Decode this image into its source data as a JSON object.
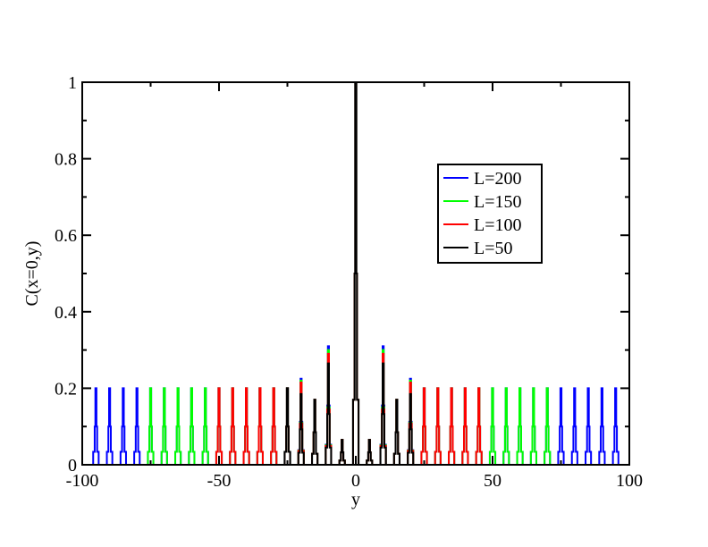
{
  "chart_data": {
    "type": "line",
    "title": "",
    "xlabel": "y",
    "ylabel": "C(x=0,y)",
    "xlim": [
      -100,
      100
    ],
    "ylim": [
      0,
      1
    ],
    "grid": false,
    "legend_position": "upper-right",
    "x_ticks": [
      -100,
      -50,
      0,
      50,
      100
    ],
    "x_tick_labels": [
      "-100",
      "-50",
      "0",
      "50",
      "100"
    ],
    "y_ticks": [
      0,
      0.2,
      0.4,
      0.6,
      0.8,
      1
    ],
    "y_tick_labels": [
      "0",
      "0.2",
      "0.4",
      "0.6",
      "0.8",
      "1"
    ],
    "series": [
      {
        "name": "L=200",
        "color": "#0000ff",
        "peaks": [
          {
            "x": -95,
            "y": 0.2
          },
          {
            "x": -90,
            "y": 0.2
          },
          {
            "x": -85,
            "y": 0.2
          },
          {
            "x": -80,
            "y": 0.2
          },
          {
            "x": -75,
            "y": 0.2
          },
          {
            "x": -70,
            "y": 0.2
          },
          {
            "x": -65,
            "y": 0.2
          },
          {
            "x": -60,
            "y": 0.2
          },
          {
            "x": -55,
            "y": 0.2
          },
          {
            "x": -50,
            "y": 0.2
          },
          {
            "x": -45,
            "y": 0.2
          },
          {
            "x": -40,
            "y": 0.2
          },
          {
            "x": -35,
            "y": 0.2
          },
          {
            "x": -30,
            "y": 0.2
          },
          {
            "x": -25,
            "y": 0.2
          },
          {
            "x": -20,
            "y": 0.225
          },
          {
            "x": -15,
            "y": 0.17
          },
          {
            "x": -10,
            "y": 0.31
          },
          {
            "x": -5,
            "y": 0.065
          },
          {
            "x": 0,
            "y": 1.0
          },
          {
            "x": 5,
            "y": 0.065
          },
          {
            "x": 10,
            "y": 0.31
          },
          {
            "x": 15,
            "y": 0.17
          },
          {
            "x": 20,
            "y": 0.225
          },
          {
            "x": 25,
            "y": 0.2
          },
          {
            "x": 30,
            "y": 0.2
          },
          {
            "x": 35,
            "y": 0.2
          },
          {
            "x": 40,
            "y": 0.2
          },
          {
            "x": 45,
            "y": 0.2
          },
          {
            "x": 50,
            "y": 0.2
          },
          {
            "x": 55,
            "y": 0.2
          },
          {
            "x": 60,
            "y": 0.2
          },
          {
            "x": 65,
            "y": 0.2
          },
          {
            "x": 70,
            "y": 0.2
          },
          {
            "x": 75,
            "y": 0.2
          },
          {
            "x": 80,
            "y": 0.2
          },
          {
            "x": 85,
            "y": 0.2
          },
          {
            "x": 90,
            "y": 0.2
          },
          {
            "x": 95,
            "y": 0.2
          }
        ]
      },
      {
        "name": "L=150",
        "color": "#00ff00",
        "peaks": [
          {
            "x": -75,
            "y": 0.2
          },
          {
            "x": -70,
            "y": 0.2
          },
          {
            "x": -65,
            "y": 0.2
          },
          {
            "x": -60,
            "y": 0.2
          },
          {
            "x": -55,
            "y": 0.2
          },
          {
            "x": -50,
            "y": 0.2
          },
          {
            "x": -45,
            "y": 0.2
          },
          {
            "x": -40,
            "y": 0.2
          },
          {
            "x": -35,
            "y": 0.2
          },
          {
            "x": -30,
            "y": 0.2
          },
          {
            "x": -25,
            "y": 0.2
          },
          {
            "x": -20,
            "y": 0.22
          },
          {
            "x": -15,
            "y": 0.17
          },
          {
            "x": -10,
            "y": 0.3
          },
          {
            "x": -5,
            "y": 0.065
          },
          {
            "x": 0,
            "y": 1.0
          },
          {
            "x": 5,
            "y": 0.065
          },
          {
            "x": 10,
            "y": 0.3
          },
          {
            "x": 15,
            "y": 0.17
          },
          {
            "x": 20,
            "y": 0.22
          },
          {
            "x": 25,
            "y": 0.2
          },
          {
            "x": 30,
            "y": 0.2
          },
          {
            "x": 35,
            "y": 0.2
          },
          {
            "x": 40,
            "y": 0.2
          },
          {
            "x": 45,
            "y": 0.2
          },
          {
            "x": 50,
            "y": 0.2
          },
          {
            "x": 55,
            "y": 0.2
          },
          {
            "x": 60,
            "y": 0.2
          },
          {
            "x": 65,
            "y": 0.2
          },
          {
            "x": 70,
            "y": 0.2
          }
        ]
      },
      {
        "name": "L=100",
        "color": "#ff0000",
        "peaks": [
          {
            "x": -50,
            "y": 0.2
          },
          {
            "x": -45,
            "y": 0.2
          },
          {
            "x": -40,
            "y": 0.2
          },
          {
            "x": -35,
            "y": 0.2
          },
          {
            "x": -30,
            "y": 0.2
          },
          {
            "x": -25,
            "y": 0.2
          },
          {
            "x": -20,
            "y": 0.215
          },
          {
            "x": -15,
            "y": 0.17
          },
          {
            "x": -10,
            "y": 0.29
          },
          {
            "x": -5,
            "y": 0.065
          },
          {
            "x": 0,
            "y": 1.0
          },
          {
            "x": 5,
            "y": 0.065
          },
          {
            "x": 10,
            "y": 0.29
          },
          {
            "x": 15,
            "y": 0.17
          },
          {
            "x": 20,
            "y": 0.215
          },
          {
            "x": 25,
            "y": 0.2
          },
          {
            "x": 30,
            "y": 0.2
          },
          {
            "x": 35,
            "y": 0.2
          },
          {
            "x": 40,
            "y": 0.2
          },
          {
            "x": 45,
            "y": 0.2
          }
        ]
      },
      {
        "name": "L=50",
        "color": "#000000",
        "peaks": [
          {
            "x": -25,
            "y": 0.2
          },
          {
            "x": -20,
            "y": 0.185
          },
          {
            "x": -15,
            "y": 0.17
          },
          {
            "x": -10,
            "y": 0.265
          },
          {
            "x": -5,
            "y": 0.065
          },
          {
            "x": 0,
            "y": 1.0
          },
          {
            "x": 5,
            "y": 0.065
          },
          {
            "x": 10,
            "y": 0.265
          },
          {
            "x": 15,
            "y": 0.17
          },
          {
            "x": 20,
            "y": 0.185
          }
        ]
      }
    ]
  }
}
